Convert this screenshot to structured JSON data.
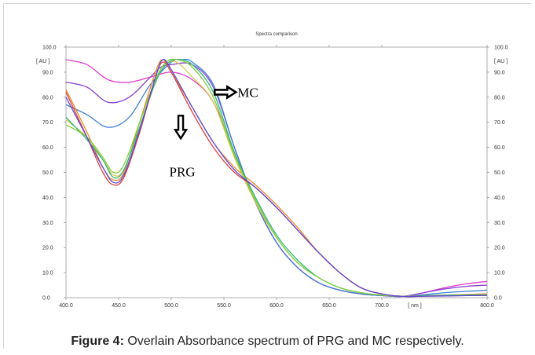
{
  "chart_data": {
    "type": "line",
    "title": "Spectra comparison",
    "xlabel": "[ nm ]",
    "ylabel_left": "[ AU ]",
    "ylabel_right": "[ AU ]",
    "xlim": [
      400,
      800
    ],
    "ylim": [
      0,
      100
    ],
    "x_ticks": [
      "400.0",
      "450.0",
      "500.0",
      "550.0",
      "600.0",
      "650.0",
      "700.0",
      "800.0"
    ],
    "y_ticks": [
      "100.0",
      "90.0",
      "80.0",
      "70.0",
      "60.0",
      "50.0",
      "40.0",
      "30.0",
      "20.0",
      "10.0",
      "0.0"
    ],
    "grid": false,
    "series": [
      {
        "color": "#e23bd0",
        "points": [
          [
            400,
            95
          ],
          [
            420,
            93
          ],
          [
            440,
            87
          ],
          [
            460,
            86
          ],
          [
            480,
            88
          ],
          [
            500,
            90
          ],
          [
            520,
            87
          ],
          [
            540,
            78
          ],
          [
            560,
            58
          ],
          [
            580,
            38
          ],
          [
            600,
            22
          ],
          [
            620,
            12
          ],
          [
            640,
            6
          ],
          [
            660,
            3
          ],
          [
            680,
            1.5
          ],
          [
            700,
            0.8
          ],
          [
            720,
            0.5
          ],
          [
            740,
            2
          ],
          [
            760,
            4
          ],
          [
            780,
            5.5
          ],
          [
            800,
            6.5
          ]
        ]
      },
      {
        "color": "#8a3fd0",
        "points": [
          [
            400,
            86
          ],
          [
            420,
            84
          ],
          [
            440,
            78
          ],
          [
            460,
            80
          ],
          [
            480,
            88
          ],
          [
            490,
            92
          ],
          [
            500,
            93
          ],
          [
            520,
            93
          ],
          [
            540,
            84
          ],
          [
            560,
            60
          ],
          [
            580,
            38
          ],
          [
            600,
            22
          ],
          [
            620,
            12
          ],
          [
            640,
            6
          ],
          [
            660,
            3
          ],
          [
            680,
            1.5
          ],
          [
            700,
            0.8
          ],
          [
            720,
            0.5
          ],
          [
            740,
            2
          ],
          [
            760,
            3.5
          ],
          [
            780,
            4.5
          ],
          [
            800,
            5
          ]
        ]
      },
      {
        "color": "#3e7fd6",
        "points": [
          [
            400,
            77
          ],
          [
            420,
            73
          ],
          [
            440,
            68
          ],
          [
            460,
            72
          ],
          [
            480,
            85
          ],
          [
            500,
            94
          ],
          [
            510,
            95
          ],
          [
            520,
            94
          ],
          [
            540,
            85
          ],
          [
            560,
            60
          ],
          [
            580,
            38
          ],
          [
            600,
            22
          ],
          [
            620,
            12
          ],
          [
            640,
            6
          ],
          [
            660,
            3
          ],
          [
            680,
            1.5
          ],
          [
            700,
            0.8
          ],
          [
            720,
            0.5
          ],
          [
            740,
            1.2
          ],
          [
            760,
            2
          ],
          [
            780,
            2.5
          ],
          [
            800,
            3
          ]
        ]
      },
      {
        "color": "#f08a2a",
        "points": [
          [
            400,
            83
          ],
          [
            420,
            66
          ],
          [
            435,
            52
          ],
          [
            445,
            47
          ],
          [
            455,
            50
          ],
          [
            470,
            70
          ],
          [
            485,
            90
          ],
          [
            492,
            95
          ],
          [
            500,
            90
          ],
          [
            520,
            76
          ],
          [
            540,
            62
          ],
          [
            560,
            52
          ],
          [
            580,
            45
          ],
          [
            600,
            37
          ],
          [
            620,
            28
          ],
          [
            640,
            18
          ],
          [
            660,
            10
          ],
          [
            680,
            4
          ],
          [
            700,
            1.5
          ],
          [
            720,
            0.5
          ],
          [
            740,
            0.7
          ],
          [
            760,
            1
          ],
          [
            780,
            1.3
          ],
          [
            800,
            1.5
          ]
        ]
      },
      {
        "color": "#d8c84c",
        "points": [
          [
            400,
            71
          ],
          [
            420,
            64
          ],
          [
            435,
            55
          ],
          [
            445,
            49
          ],
          [
            455,
            51
          ],
          [
            470,
            68
          ],
          [
            485,
            86
          ],
          [
            495,
            93
          ],
          [
            505,
            94
          ],
          [
            520,
            88
          ],
          [
            540,
            78
          ],
          [
            560,
            56
          ],
          [
            580,
            38
          ],
          [
            600,
            24
          ],
          [
            620,
            14
          ],
          [
            640,
            8
          ],
          [
            660,
            4
          ],
          [
            680,
            2
          ],
          [
            700,
            1
          ],
          [
            720,
            0.6
          ],
          [
            740,
            0.8
          ],
          [
            760,
            1
          ],
          [
            780,
            1.2
          ],
          [
            800,
            1.3
          ]
        ]
      },
      {
        "color": "#2fb57a",
        "points": [
          [
            400,
            72
          ],
          [
            420,
            63
          ],
          [
            435,
            55
          ],
          [
            445,
            48
          ],
          [
            455,
            51
          ],
          [
            470,
            68
          ],
          [
            485,
            86
          ],
          [
            495,
            93
          ],
          [
            505,
            95
          ],
          [
            520,
            93
          ],
          [
            540,
            82
          ],
          [
            560,
            58
          ],
          [
            580,
            40
          ],
          [
            600,
            25
          ],
          [
            620,
            15
          ],
          [
            640,
            8
          ],
          [
            660,
            4
          ],
          [
            680,
            2
          ],
          [
            700,
            1
          ],
          [
            720,
            0.6
          ],
          [
            740,
            0.8
          ],
          [
            760,
            1
          ],
          [
            780,
            1.1
          ],
          [
            800,
            1.2
          ]
        ]
      },
      {
        "color": "#7fcf3c",
        "points": [
          [
            400,
            69
          ],
          [
            420,
            64
          ],
          [
            435,
            56
          ],
          [
            445,
            50
          ],
          [
            455,
            53
          ],
          [
            470,
            70
          ],
          [
            485,
            87
          ],
          [
            495,
            94
          ],
          [
            505,
            95
          ],
          [
            520,
            92
          ],
          [
            540,
            80
          ],
          [
            560,
            57
          ],
          [
            580,
            39
          ],
          [
            600,
            24
          ],
          [
            620,
            14
          ],
          [
            640,
            8
          ],
          [
            660,
            4
          ],
          [
            680,
            2
          ],
          [
            700,
            1
          ],
          [
            720,
            0.6
          ],
          [
            740,
            0.7
          ],
          [
            760,
            0.8
          ],
          [
            780,
            0.9
          ],
          [
            800,
            1
          ]
        ]
      },
      {
        "color": "#e04040",
        "points": [
          [
            400,
            82
          ],
          [
            420,
            64
          ],
          [
            435,
            50
          ],
          [
            445,
            45
          ],
          [
            455,
            48
          ],
          [
            470,
            66
          ],
          [
            485,
            88
          ],
          [
            492,
            94
          ],
          [
            500,
            90
          ],
          [
            520,
            74
          ],
          [
            540,
            60
          ],
          [
            560,
            50
          ],
          [
            580,
            44
          ],
          [
            600,
            36
          ],
          [
            620,
            27
          ],
          [
            640,
            18
          ],
          [
            660,
            10
          ],
          [
            680,
            4
          ],
          [
            700,
            1.5
          ],
          [
            720,
            0.5
          ],
          [
            740,
            0.6
          ],
          [
            760,
            0.7
          ],
          [
            780,
            0.8
          ],
          [
            800,
            0.9
          ]
        ]
      },
      {
        "color": "#5a4ad6",
        "points": [
          [
            400,
            80
          ],
          [
            420,
            64
          ],
          [
            435,
            52
          ],
          [
            445,
            46
          ],
          [
            455,
            49
          ],
          [
            470,
            67
          ],
          [
            485,
            88
          ],
          [
            492,
            95
          ],
          [
            500,
            91
          ],
          [
            520,
            76
          ],
          [
            540,
            62
          ],
          [
            560,
            51
          ],
          [
            580,
            44
          ],
          [
            600,
            36
          ],
          [
            620,
            27
          ],
          [
            640,
            18
          ],
          [
            660,
            10
          ],
          [
            680,
            4
          ],
          [
            700,
            1.5
          ],
          [
            720,
            0.5
          ],
          [
            740,
            0.6
          ],
          [
            760,
            0.7
          ],
          [
            780,
            0.8
          ],
          [
            800,
            0.9
          ]
        ]
      }
    ],
    "annotations": [
      {
        "text": "MC",
        "arrow": "right"
      },
      {
        "text": "PRG",
        "arrow": "down"
      }
    ]
  },
  "caption": {
    "label": "Figure 4:",
    "text": " Overlain Absorbance spectrum of PRG and MC respectively."
  }
}
